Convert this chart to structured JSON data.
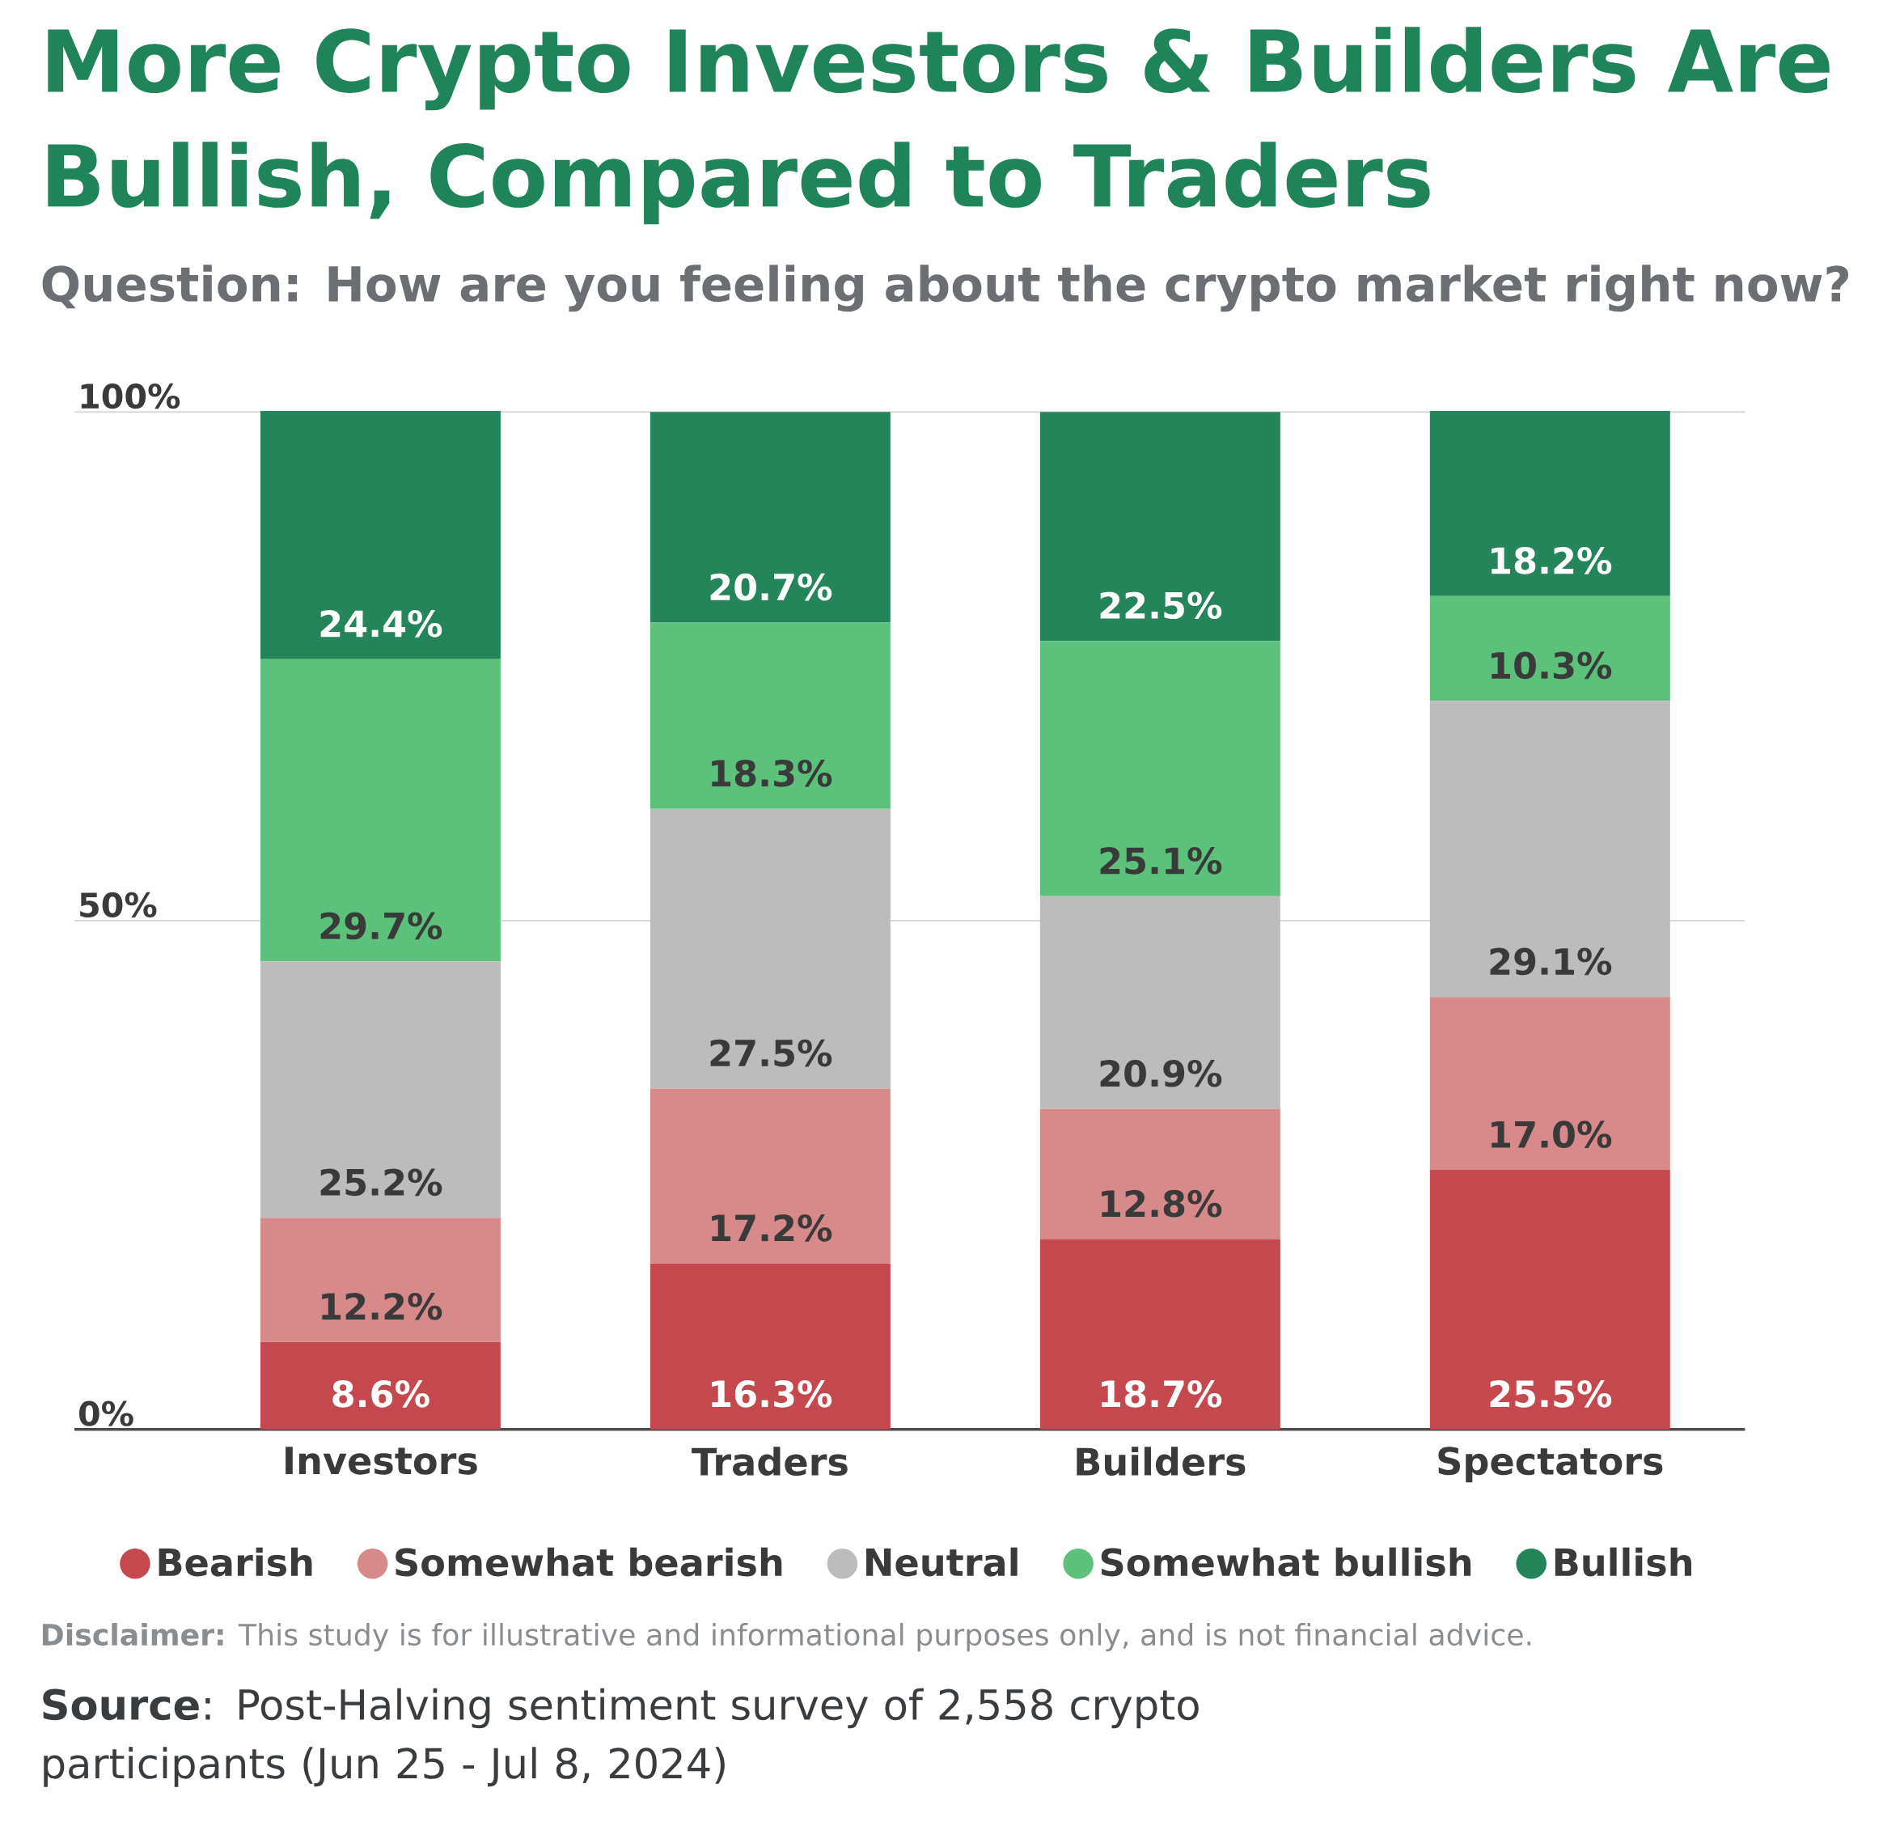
{
  "chart_data": {
    "type": "bar",
    "stacked": true,
    "title": "More Crypto Investors & Builders Are Bullish, Compared to Traders",
    "subtitle": "Question: How are you feeling about the crypto market right now?",
    "categories": [
      "Investors",
      "Traders",
      "Builders",
      "Spectators"
    ],
    "series": [
      {
        "name": "Bearish",
        "color": "#c4484e",
        "values": [
          8.6,
          16.3,
          18.7,
          25.5
        ],
        "value_labels": [
          "8.6%",
          "16.3%",
          "18.7%",
          "25.5%"
        ]
      },
      {
        "name": "Somewhat bearish",
        "color": "#d88a8a",
        "values": [
          12.2,
          17.2,
          12.8,
          17.0
        ],
        "value_labels": [
          "12.2%",
          "17.2%",
          "12.8%",
          "17.0%"
        ]
      },
      {
        "name": "Neutral",
        "color": "#bcbcbc",
        "values": [
          25.2,
          27.5,
          20.9,
          29.1
        ],
        "value_labels": [
          "25.2%",
          "27.5%",
          "20.9%",
          "29.1%"
        ]
      },
      {
        "name": "Somewhat bullish",
        "color": "#5cc27b",
        "values": [
          29.7,
          18.3,
          25.1,
          10.3
        ],
        "value_labels": [
          "29.7%",
          "18.3%",
          "25.1%",
          "10.3%"
        ]
      },
      {
        "name": "Bullish",
        "color": "#24855b",
        "values": [
          24.4,
          20.7,
          22.5,
          18.2
        ],
        "value_labels": [
          "24.4%",
          "20.7%",
          "22.5%",
          "18.2%"
        ]
      }
    ],
    "ylim": [
      0,
      100
    ],
    "yticks": [
      {
        "value": 0,
        "label": "0%"
      },
      {
        "value": 50,
        "label": "50%"
      },
      {
        "value": 100,
        "label": "100%"
      }
    ],
    "grid": "y",
    "legend": "bottom",
    "annotations": [
      "**Disclaimer:** This study is for illustrative and informational purposes only, and is not financial advice.",
      "**Source**: Post-Halving sentiment survey of 2,558 crypto participants (Jun 25 - Jul 8, 2024)"
    ]
  }
}
